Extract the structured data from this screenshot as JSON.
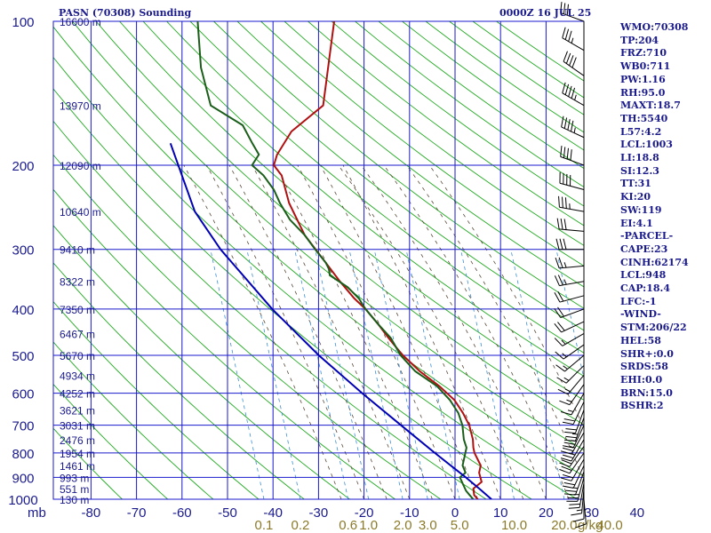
{
  "chart_data": {
    "type": "line",
    "title": "PASN (70308) Sounding",
    "time_label": "0000Z 16 JUL 25",
    "y_unit_label": "mb",
    "mixing_unit_label": "g/kg",
    "pressure_ticks": [
      100,
      200,
      300,
      400,
      500,
      600,
      700,
      800,
      900,
      1000
    ],
    "temperature_ticks": [
      -80,
      -70,
      -60,
      -50,
      -40,
      -30,
      -20,
      -10,
      0,
      10,
      20,
      30,
      40
    ],
    "mixing_ratio_labels": [
      {
        "label": "0.1",
        "temp": -42
      },
      {
        "label": "0.2",
        "temp": -34
      },
      {
        "label": "0.6",
        "temp": -23.5
      },
      {
        "label": "1.0",
        "temp": -19
      },
      {
        "label": "2.0",
        "temp": -11.5
      },
      {
        "label": "3.0",
        "temp": -6
      },
      {
        "label": "5.0",
        "temp": 1
      },
      {
        "label": "10.0",
        "temp": 13
      },
      {
        "label": "20.0",
        "temp": 24
      },
      {
        "label": "40.0",
        "temp": 34
      }
    ],
    "height_labels": [
      {
        "p": 100,
        "label": "16600 m"
      },
      {
        "p": 150,
        "label": "13970 m"
      },
      {
        "p": 200,
        "label": "12090 m"
      },
      {
        "p": 250,
        "label": "10640 m"
      },
      {
        "p": 300,
        "label": "9410 m"
      },
      {
        "p": 350,
        "label": "8322 m"
      },
      {
        "p": 400,
        "label": "7350 m"
      },
      {
        "p": 450,
        "label": "6467 m"
      },
      {
        "p": 500,
        "label": "5670 m"
      },
      {
        "p": 550,
        "label": "4934 m"
      },
      {
        "p": 600,
        "label": "4252 m"
      },
      {
        "p": 650,
        "label": "3621 m"
      },
      {
        "p": 700,
        "label": "3031 m"
      },
      {
        "p": 750,
        "label": "2476 m"
      },
      {
        "p": 800,
        "label": "1954 m"
      },
      {
        "p": 850,
        "label": "1461 m"
      },
      {
        "p": 900,
        "label": "993 m"
      },
      {
        "p": 950,
        "label": "551 m"
      },
      {
        "p": 1000,
        "label": "130 m"
      }
    ],
    "series": [
      {
        "color": "#b01010",
        "points": [
          [
            100,
            -50
          ],
          [
            150,
            -48.3
          ],
          [
            170,
            -54
          ],
          [
            190,
            -56
          ],
          [
            200,
            -56.2
          ],
          [
            210,
            -54
          ],
          [
            240,
            -51
          ],
          [
            280,
            -46
          ],
          [
            320,
            -40
          ],
          [
            350,
            -36
          ],
          [
            380,
            -32
          ],
          [
            400,
            -29
          ],
          [
            430,
            -25.5
          ],
          [
            460,
            -22.5
          ],
          [
            490,
            -19.5
          ],
          [
            500,
            -18.5
          ],
          [
            540,
            -14
          ],
          [
            580,
            -9
          ],
          [
            620,
            -5
          ],
          [
            660,
            -2.5
          ],
          [
            700,
            -0.5
          ],
          [
            750,
            1
          ],
          [
            780,
            1.5
          ],
          [
            800,
            2
          ],
          [
            850,
            4
          ],
          [
            880,
            4
          ],
          [
            900,
            4.5
          ],
          [
            920,
            5
          ],
          [
            950,
            3.5
          ],
          [
            980,
            4
          ],
          [
            1000,
            5
          ]
        ]
      },
      {
        "color": "#1a5e1a",
        "points": [
          [
            100,
            -80
          ],
          [
            125,
            -77
          ],
          [
            150,
            -73
          ],
          [
            165,
            -65
          ],
          [
            180,
            -62
          ],
          [
            190,
            -60
          ],
          [
            200,
            -61
          ],
          [
            210,
            -58
          ],
          [
            225,
            -55
          ],
          [
            240,
            -53
          ],
          [
            260,
            -50
          ],
          [
            280,
            -46
          ],
          [
            300,
            -43
          ],
          [
            320,
            -40
          ],
          [
            330,
            -39
          ],
          [
            340,
            -38.5
          ],
          [
            360,
            -34
          ],
          [
            380,
            -31
          ],
          [
            400,
            -29
          ],
          [
            430,
            -25.5
          ],
          [
            460,
            -22
          ],
          [
            500,
            -19
          ],
          [
            540,
            -15
          ],
          [
            580,
            -9.5
          ],
          [
            620,
            -6
          ],
          [
            660,
            -3.5
          ],
          [
            700,
            -2
          ],
          [
            750,
            -1
          ],
          [
            780,
            0
          ],
          [
            800,
            0
          ],
          [
            850,
            0
          ],
          [
            880,
            1
          ],
          [
            900,
            0
          ],
          [
            930,
            1
          ],
          [
            960,
            2
          ],
          [
            980,
            3
          ],
          [
            1000,
            4
          ]
        ]
      },
      {
        "color": "#0000b4",
        "points": [
          [
            180,
            -80
          ],
          [
            250,
            -71.3
          ],
          [
            300,
            -63.8
          ],
          [
            400,
            -49.5
          ],
          [
            500,
            -37
          ],
          [
            600,
            -25.6
          ],
          [
            700,
            -15.5
          ],
          [
            800,
            -6.7
          ],
          [
            900,
            1.3
          ],
          [
            950,
            4.8
          ],
          [
            1000,
            8
          ]
        ]
      }
    ],
    "winds": [
      [
        100,
        290,
        30
      ],
      [
        115,
        300,
        35
      ],
      [
        130,
        305,
        40
      ],
      [
        150,
        300,
        45
      ],
      [
        175,
        295,
        45
      ],
      [
        200,
        290,
        40
      ],
      [
        225,
        285,
        40
      ],
      [
        250,
        280,
        35
      ],
      [
        275,
        275,
        30
      ],
      [
        300,
        270,
        30
      ],
      [
        325,
        265,
        25
      ],
      [
        350,
        260,
        25
      ],
      [
        375,
        255,
        20
      ],
      [
        400,
        250,
        20
      ],
      [
        425,
        245,
        20
      ],
      [
        450,
        240,
        15
      ],
      [
        475,
        235,
        15
      ],
      [
        500,
        230,
        15
      ],
      [
        525,
        225,
        15
      ],
      [
        550,
        220,
        15
      ],
      [
        575,
        215,
        15
      ],
      [
        600,
        210,
        15
      ],
      [
        625,
        205,
        20
      ],
      [
        650,
        200,
        20
      ],
      [
        675,
        200,
        25
      ],
      [
        700,
        205,
        25
      ],
      [
        725,
        210,
        25
      ],
      [
        750,
        210,
        25
      ],
      [
        775,
        215,
        20
      ],
      [
        800,
        215,
        20
      ],
      [
        825,
        210,
        20
      ],
      [
        850,
        205,
        20
      ],
      [
        875,
        200,
        25
      ],
      [
        900,
        195,
        25
      ],
      [
        925,
        190,
        20
      ],
      [
        950,
        185,
        15
      ],
      [
        975,
        180,
        10
      ],
      [
        1000,
        175,
        10
      ]
    ]
  },
  "indices": [
    "WMO:70308",
    "TP:204",
    "FRZ:710",
    "WB0:711",
    "PW:1.16",
    "RH:95.0",
    "MAXT:18.7",
    "TH:5540",
    "L57:4.2",
    "LCL:1003",
    "LI:18.8",
    "SI:12.3",
    "TT:31",
    "KI:20",
    "SW:119",
    "EI:4.1",
    "-PARCEL-",
    "CAPE:23",
    "CINH:62174",
    "LCL:948",
    "CAP:18.4",
    "LFC:-1",
    "-WIND-",
    "STM:206/22",
    "HEL:58",
    "SHR+:0.0",
    "SRDS:58",
    "EHI:0.0",
    "BRN:15.0",
    "BSHR:2"
  ]
}
